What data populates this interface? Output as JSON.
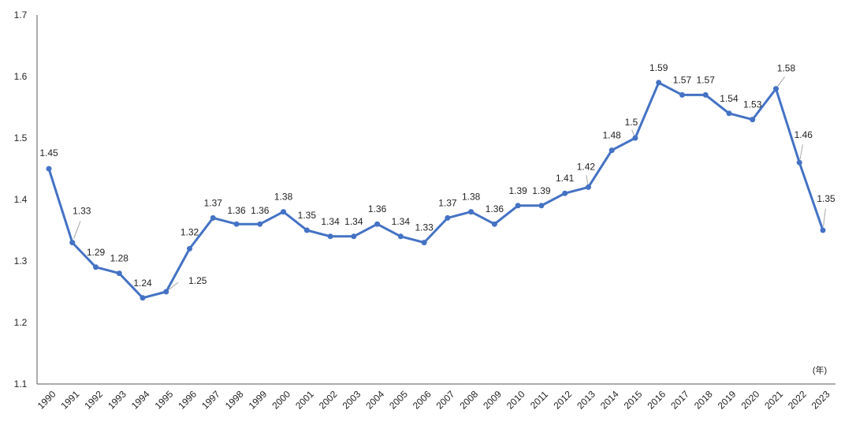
{
  "chart_data": {
    "type": "line",
    "title": "",
    "xlabel": "",
    "ylabel": "",
    "x_unit_label": "(年)",
    "ylim": [
      1.1,
      1.7
    ],
    "yticks": [
      "1.1",
      "1.2",
      "1.3",
      "1.4",
      "1.5",
      "1.6",
      "1.7"
    ],
    "grid": false,
    "legend": "none",
    "line_color": "#4472C4",
    "categories": [
      "1990",
      "1991",
      "1992",
      "1993",
      "1994",
      "1995",
      "1996",
      "1997",
      "1998",
      "1999",
      "2000",
      "2001",
      "2002",
      "2003",
      "2004",
      "2005",
      "2006",
      "2007",
      "2008",
      "2009",
      "2010",
      "2011",
      "2012",
      "2013",
      "2014",
      "2015",
      "2016",
      "2017",
      "2018",
      "2019",
      "2020",
      "2021",
      "2022",
      "2023"
    ],
    "series": [
      {
        "values": [
          1.45,
          1.33,
          1.29,
          1.28,
          1.24,
          1.25,
          1.32,
          1.37,
          1.36,
          1.36,
          1.38,
          1.35,
          1.34,
          1.34,
          1.36,
          1.34,
          1.33,
          1.37,
          1.38,
          1.36,
          1.39,
          1.39,
          1.41,
          1.42,
          1.48,
          1.5,
          1.59,
          1.57,
          1.57,
          1.54,
          1.53,
          1.58,
          1.46,
          1.35
        ],
        "labels": [
          "1.45",
          "1.33",
          "1.29",
          "1.28",
          "1.24",
          "1.25",
          "1.32",
          "1.37",
          "1.36",
          "1.36",
          "1.38",
          "1.35",
          "1.34",
          "1.34",
          "1.36",
          "1.34",
          "1.33",
          "1.37",
          "1.38",
          "1.36",
          "1.39",
          "1.39",
          "1.41",
          "1.42",
          "1.48",
          "1.5",
          "1.59",
          "1.57",
          "1.57",
          "1.54",
          "1.53",
          "1.58",
          "1.46",
          "1.35"
        ]
      }
    ]
  }
}
